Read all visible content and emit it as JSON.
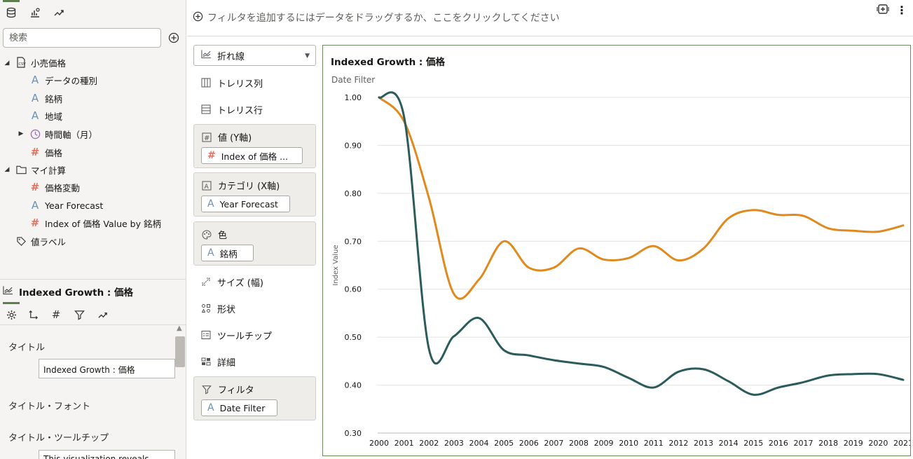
{
  "data_panel": {
    "search_placeholder": "検索",
    "tree": {
      "dataset": "小売価格",
      "dataset_items": [
        "データの種別",
        "銘柄",
        "地域"
      ],
      "time_item": "時間軸（月）",
      "price_item": "価格",
      "my_calc": "マイ計算",
      "calc_items": [
        {
          "label": "価格変動",
          "kind": "measure"
        },
        {
          "label": "Year Forecast",
          "kind": "attribute"
        },
        {
          "label": "Index of 価格 Value by 銘柄",
          "kind": "measure"
        }
      ],
      "value_labels": "値ラベル"
    }
  },
  "properties": {
    "title": "Indexed Growth : 価格",
    "title_label": "タイトル",
    "title_value": "Indexed Growth : 価格",
    "font_label": "タイトル・フォント",
    "tooltip_label": "タイトル・ツールチップ",
    "tooltip_value": "This visualization reveals..."
  },
  "filterbar": {
    "prompt": "フィルタを追加するにはデータをドラッグするか、ここをクリックしてください"
  },
  "grammar": {
    "viz_type": "折れ線",
    "trellis_columns": "トレリス列",
    "trellis_rows": "トレリス行",
    "values_label": "値 (Y軸)",
    "values_pill": "Index of 価格 ...",
    "category_label": "カテゴリ (X軸)",
    "category_pill": "Year Forecast",
    "color_label": "色",
    "color_pill": "銘柄",
    "size": "サイズ (幅)",
    "shape": "形状",
    "tooltip": "ツールチップ",
    "detail": "詳細",
    "filter_label": "フィルタ",
    "filter_pill": "Date Filter"
  },
  "chart_data": {
    "type": "line",
    "title": "Indexed Growth : 価格",
    "subtitle": "Date Filter",
    "xlabel": "",
    "ylabel": "Index Value",
    "ylim": [
      0.3,
      1.0
    ],
    "yticks": [
      "1.00",
      "0.90",
      "0.80",
      "0.70",
      "0.60",
      "0.50",
      "0.40",
      "0.30"
    ],
    "categories": [
      "2000",
      "2001",
      "2002",
      "2003",
      "2004",
      "2005",
      "2006",
      "2007",
      "2008",
      "2009",
      "2010",
      "2011",
      "2012",
      "2013",
      "2014",
      "2015",
      "2016",
      "2017",
      "2018",
      "2019",
      "2020",
      "2021"
    ],
    "grid": true,
    "series": [
      {
        "color": "#e08a1e",
        "values": [
          1.0,
          0.95,
          0.79,
          0.59,
          0.62,
          0.7,
          0.645,
          0.645,
          0.685,
          0.662,
          0.665,
          0.69,
          0.66,
          0.685,
          0.748,
          0.765,
          0.755,
          0.753,
          0.727,
          0.722,
          0.72,
          0.733
        ]
      },
      {
        "color": "#2b5b5b",
        "values": [
          1.0,
          0.96,
          0.475,
          0.502,
          0.54,
          0.473,
          0.462,
          0.452,
          0.445,
          0.438,
          0.415,
          0.395,
          0.428,
          0.433,
          0.408,
          0.38,
          0.395,
          0.406,
          0.42,
          0.423,
          0.423,
          0.411
        ]
      }
    ]
  },
  "colors": {
    "accent_green": "#5f7d4f",
    "series_orange": "#e08a1e",
    "series_teal": "#2b5b5b"
  }
}
